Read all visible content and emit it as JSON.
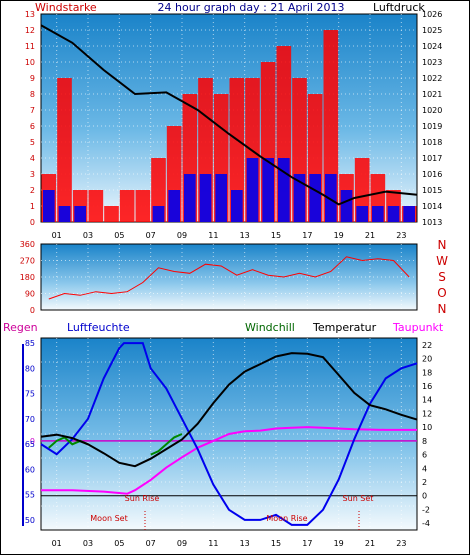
{
  "chart_data": [
    {
      "type": "bar+line",
      "title": "24 hour graph day : 21 April 2013",
      "left_label": "Windstarke",
      "right_label": "Luftdruck",
      "x_ticks": [
        "01",
        "03",
        "05",
        "07",
        "09",
        "11",
        "13",
        "15",
        "17",
        "19",
        "21",
        "23"
      ],
      "left_ylim": [
        0,
        13
      ],
      "left_ticks": [
        0,
        1,
        2,
        3,
        4,
        5,
        6,
        7,
        8,
        9,
        10,
        11,
        12,
        13
      ],
      "right_ylim": [
        1013,
        1026
      ],
      "right_ticks": [
        1013,
        1014,
        1015,
        1016,
        1017,
        1018,
        1019,
        1020,
        1021,
        1022,
        1023,
        1024,
        1025,
        1026
      ],
      "wind_gust_hourly": [
        3,
        9,
        2,
        2,
        1,
        2,
        2,
        4,
        6,
        8,
        9,
        8,
        9,
        9,
        10,
        11,
        9,
        8,
        12,
        3,
        4,
        3,
        2,
        1
      ],
      "wind_avg_hourly": [
        2,
        1,
        1,
        0,
        0,
        0,
        0,
        1,
        2,
        3,
        3,
        3,
        2,
        4,
        4,
        4,
        3,
        3,
        3,
        2,
        1,
        1,
        1,
        1
      ],
      "pressure": {
        "x": [
          0,
          2,
          4,
          6,
          8,
          10,
          12,
          14,
          16,
          18,
          19,
          20,
          22,
          24
        ],
        "y": [
          1025.3,
          1024.2,
          1022.5,
          1021,
          1021.1,
          1020,
          1018.5,
          1017.1,
          1015.8,
          1014.7,
          1014.1,
          1014.5,
          1014.9,
          1014.7
        ]
      }
    },
    {
      "type": "line",
      "title": "",
      "right_labels": [
        "N",
        "W",
        "S",
        "O",
        "N"
      ],
      "ylim": [
        0,
        360
      ],
      "y_ticks": [
        0,
        90,
        180,
        270,
        360
      ],
      "wind_direction_hourly": [
        60,
        90,
        80,
        100,
        90,
        100,
        150,
        230,
        210,
        200,
        250,
        240,
        190,
        220,
        190,
        180,
        200,
        180,
        210,
        290,
        270,
        280,
        270,
        180
      ]
    },
    {
      "type": "line",
      "legend": [
        "Regen",
        "Luftfeuchte",
        "Windchill",
        "Temperatur",
        "Taupunkt"
      ],
      "left_ylim": [
        48,
        86
      ],
      "left_ticks": [
        50,
        55,
        60,
        65,
        70,
        75,
        80,
        85
      ],
      "right_ylim": [
        -5,
        23
      ],
      "right_ticks": [
        -4,
        -2,
        0,
        2,
        4,
        6,
        8,
        10,
        12,
        14,
        16,
        18,
        20,
        22
      ],
      "rain_label": "0",
      "annotations": {
        "sun_rise": "Sun Rise",
        "sun_set": "Sun Set",
        "moon_set": "Moon Set",
        "moon_rise": "Moon Rise"
      },
      "temperature": {
        "x": [
          0,
          1,
          2,
          3,
          4,
          5,
          6,
          7,
          8,
          9,
          10,
          11,
          12,
          13,
          14,
          15,
          16,
          17,
          18,
          19,
          20,
          21,
          22,
          23,
          24
        ],
        "y": [
          8.6,
          8.9,
          8.4,
          7.5,
          6.2,
          4.8,
          4.3,
          5.4,
          6.8,
          8.2,
          10.5,
          13.5,
          16.2,
          18.1,
          19.2,
          20.3,
          20.8,
          20.7,
          20.2,
          17.6,
          15.0,
          13.2,
          12.6,
          11.8,
          11.1
        ]
      },
      "windchill": {
        "x": [
          0.5,
          1,
          1.5,
          2,
          2.5,
          3,
          7,
          7.5,
          8,
          8.5,
          9
        ],
        "y": [
          7.0,
          8.0,
          8.5,
          7.5,
          8.0,
          7.5,
          6.0,
          6.5,
          7.5,
          8.5,
          9.0
        ]
      },
      "dew_point": {
        "x": [
          0,
          2,
          4,
          5.5,
          6,
          7,
          8,
          9,
          10,
          11,
          12,
          13,
          14,
          15,
          16,
          17,
          18,
          19,
          20,
          22,
          24
        ],
        "y": [
          0.8,
          0.8,
          0.6,
          0.3,
          0.8,
          2.3,
          4.1,
          5.6,
          7.0,
          8.0,
          9.0,
          9.4,
          9.5,
          9.8,
          9.9,
          10.0,
          9.9,
          9.8,
          9.7,
          9.6,
          9.6
        ]
      },
      "humidity": {
        "x": [
          0,
          1,
          2,
          3,
          4,
          5,
          5.3,
          6,
          6.5,
          7,
          8,
          9,
          10,
          11,
          12,
          13,
          14,
          15,
          16,
          17,
          18,
          19,
          20,
          21,
          22,
          23,
          24
        ],
        "y": [
          65,
          63,
          66,
          70,
          78,
          84,
          85,
          85,
          85,
          80,
          76,
          70,
          64,
          57,
          52,
          50,
          50,
          51,
          49,
          49,
          52,
          58,
          66,
          73,
          78,
          80,
          81
        ]
      }
    }
  ]
}
